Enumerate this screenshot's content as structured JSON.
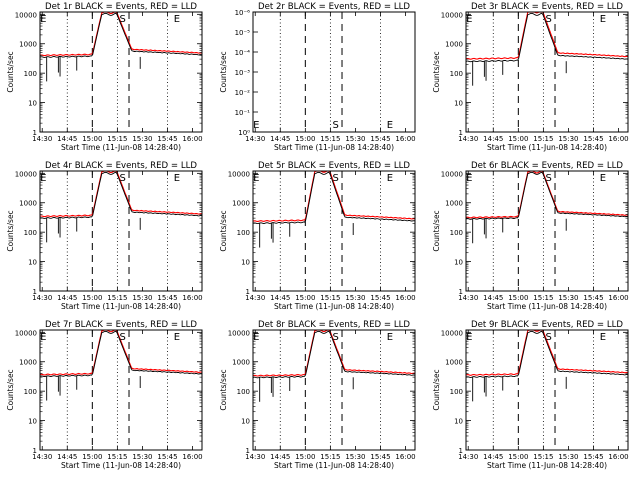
{
  "colors": {
    "events": "#000000",
    "lld": "#ff0000",
    "axis": "#000000"
  },
  "common": {
    "xlabel": "Start Time (11-Jun-08 14:28:40)",
    "ylabel": "Counts/sec",
    "xticks": [
      "14:30",
      "14:45",
      "15:00",
      "15:15",
      "15:30",
      "15:45",
      "16:00"
    ],
    "xtick_minutes": [
      1.33,
      16.33,
      31.33,
      46.33,
      61.33,
      76.33,
      91.33
    ],
    "xlim_minutes": [
      0,
      97
    ],
    "dotted_grid_minutes": [
      16.33,
      46.33,
      76.33
    ],
    "dashed_markers_minutes": [
      31.33,
      53.3
    ],
    "marker_letters": [
      {
        "t": 2.0,
        "text": "E"
      },
      {
        "t": 49.5,
        "text": "S"
      },
      {
        "t": 82.0,
        "text": "E"
      }
    ],
    "yticks": [
      "1",
      "10",
      "100",
      "1000",
      "10000"
    ],
    "ytick_values": [
      1,
      10,
      100,
      1000,
      10000
    ],
    "ylim": [
      1,
      12000
    ]
  },
  "panels": [
    {
      "title": "Det 1r BLACK = Events, RED = LLD",
      "base": 350,
      "lld_ratio": 1.15
    },
    {
      "title": "Det 2r BLACK = Events, RED = LLD",
      "empty": true,
      "yticks": [
        "10⁻⁶",
        "10⁻⁵",
        "10⁻⁴",
        "10⁻³",
        "10⁻²",
        "10⁻¹",
        "10⁰"
      ],
      "ytick_exponents": [
        -6,
        -5,
        -4,
        -3,
        -2,
        -1,
        0
      ],
      "ylim_exponents": [
        0,
        -6
      ]
    },
    {
      "title": "Det 3r BLACK = Events, RED = LLD",
      "base": 250,
      "lld_ratio": 1.22
    },
    {
      "title": "Det 4r BLACK = Events, RED = LLD",
      "base": 300,
      "lld_ratio": 1.15
    },
    {
      "title": "Det 5r BLACK = Events, RED = LLD",
      "base": 200,
      "lld_ratio": 1.18
    },
    {
      "title": "Det 6r BLACK = Events, RED = LLD",
      "base": 280,
      "lld_ratio": 1.12
    },
    {
      "title": "Det 7r BLACK = Events, RED = LLD",
      "base": 320,
      "lld_ratio": 1.14
    },
    {
      "title": "Det 8r BLACK = Events, RED = LLD",
      "base": 290,
      "lld_ratio": 1.15
    },
    {
      "title": "Det 9r BLACK = Events, RED = LLD",
      "base": 300,
      "lld_ratio": 1.18
    }
  ],
  "chart_data": [
    {
      "type": "line",
      "title": "Det 1r BLACK = Events, RED = LLD",
      "xlabel": "Start Time (11-Jun-08 14:28:40)",
      "ylabel": "Counts/sec",
      "log_y": true,
      "ylim": [
        1,
        12000
      ],
      "series": [
        {
          "name": "Events",
          "x": [
            0,
            31,
            33,
            39,
            41,
            54,
            97
          ],
          "y": [
            330,
            370,
            800,
            10000,
            10000,
            600,
            400
          ]
        },
        {
          "name": "LLD",
          "x": [
            0,
            31,
            33,
            39,
            41,
            54,
            97
          ],
          "y": [
            380,
            420,
            900,
            10000,
            10000,
            690,
            460
          ]
        }
      ]
    },
    {
      "type": "line",
      "title": "Det 2r BLACK = Events, RED = LLD",
      "xlabel": "Start Time (11-Jun-08 14:28:40)",
      "ylabel": "Counts/sec",
      "log_y": true,
      "ylim": [
        1e-06,
        1
      ],
      "series": []
    },
    {
      "type": "line",
      "title": "Det 3r BLACK = Events, RED = LLD",
      "xlabel": "Start Time (11-Jun-08 14:28:40)",
      "ylabel": "Counts/sec",
      "log_y": true,
      "ylim": [
        1,
        12000
      ],
      "series": [
        {
          "name": "Events",
          "x": [
            0,
            31,
            33,
            39,
            41,
            54,
            97
          ],
          "y": [
            240,
            260,
            700,
            10000,
            10000,
            380,
            300
          ]
        },
        {
          "name": "LLD",
          "x": [
            0,
            31,
            33,
            39,
            41,
            54,
            97
          ],
          "y": [
            290,
            320,
            800,
            10000,
            10000,
            460,
            370
          ]
        }
      ]
    },
    {
      "type": "line",
      "title": "Det 4r BLACK = Events, RED = LLD",
      "xlabel": "Start Time (11-Jun-08 14:28:40)",
      "ylabel": "Counts/sec",
      "log_y": true,
      "ylim": [
        1,
        12000
      ],
      "series": [
        {
          "name": "Events",
          "x": [
            0,
            31,
            33,
            39,
            41,
            54,
            97
          ],
          "y": [
            280,
            320,
            800,
            10000,
            10000,
            480,
            330
          ]
        },
        {
          "name": "LLD",
          "x": [
            0,
            31,
            33,
            39,
            41,
            54,
            97
          ],
          "y": [
            320,
            370,
            900,
            10000,
            10000,
            550,
            380
          ]
        }
      ]
    },
    {
      "type": "line",
      "title": "Det 5r BLACK = Events, RED = LLD",
      "xlabel": "Start Time (11-Jun-08 14:28:40)",
      "ylabel": "Counts/sec",
      "log_y": true,
      "ylim": [
        1,
        12000
      ],
      "series": [
        {
          "name": "Events",
          "x": [
            0,
            31,
            33,
            39,
            41,
            54,
            97
          ],
          "y": [
            180,
            220,
            600,
            10000,
            10000,
            330,
            220
          ]
        },
        {
          "name": "LLD",
          "x": [
            0,
            31,
            33,
            39,
            41,
            54,
            97
          ],
          "y": [
            210,
            260,
            700,
            10000,
            10000,
            390,
            260
          ]
        }
      ]
    },
    {
      "type": "line",
      "title": "Det 6r BLACK = Events, RED = LLD",
      "xlabel": "Start Time (11-Jun-08 14:28:40)",
      "ylabel": "Counts/sec",
      "log_y": true,
      "ylim": [
        1,
        12000
      ],
      "series": [
        {
          "name": "Events",
          "x": [
            0,
            31,
            33,
            39,
            41,
            54,
            97
          ],
          "y": [
            260,
            290,
            750,
            10000,
            10000,
            520,
            380
          ]
        },
        {
          "name": "LLD",
          "x": [
            0,
            31,
            33,
            39,
            41,
            54,
            97
          ],
          "y": [
            290,
            330,
            850,
            10000,
            10000,
            580,
            420
          ]
        }
      ]
    },
    {
      "type": "line",
      "title": "Det 7r BLACK = Events, RED = LLD",
      "xlabel": "Start Time (11-Jun-08 14:28:40)",
      "ylabel": "Counts/sec",
      "log_y": true,
      "ylim": [
        1,
        12000
      ],
      "series": [
        {
          "name": "Events",
          "x": [
            0,
            31,
            33,
            39,
            41,
            54,
            97
          ],
          "y": [
            300,
            340,
            800,
            10000,
            10000,
            530,
            380
          ]
        },
        {
          "name": "LLD",
          "x": [
            0,
            31,
            33,
            39,
            41,
            54,
            97
          ],
          "y": [
            340,
            390,
            900,
            10000,
            10000,
            600,
            430
          ]
        }
      ]
    },
    {
      "type": "line",
      "title": "Det 8r BLACK = Events, RED = LLD",
      "xlabel": "Start Time (11-Jun-08 14:28:40)",
      "ylabel": "Counts/sec",
      "log_y": true,
      "ylim": [
        1,
        12000
      ],
      "series": [
        {
          "name": "Events",
          "x": [
            0,
            31,
            33,
            39,
            41,
            54,
            97
          ],
          "y": [
            270,
            310,
            780,
            10000,
            10000,
            500,
            360
          ]
        },
        {
          "name": "LLD",
          "x": [
            0,
            31,
            33,
            39,
            41,
            54,
            97
          ],
          "y": [
            310,
            360,
            880,
            10000,
            10000,
            575,
            410
          ]
        }
      ]
    },
    {
      "type": "line",
      "title": "Det 9r BLACK = Events, RED = LLD",
      "xlabel": "Start Time (11-Jun-08 14:28:40)",
      "ylabel": "Counts/sec",
      "log_y": true,
      "ylim": [
        1,
        12000
      ],
      "series": [
        {
          "name": "Events",
          "x": [
            0,
            31,
            33,
            39,
            41,
            54,
            97
          ],
          "y": [
            280,
            320,
            780,
            10000,
            10000,
            520,
            370
          ]
        },
        {
          "name": "LLD",
          "x": [
            0,
            31,
            33,
            39,
            41,
            54,
            97
          ],
          "y": [
            330,
            380,
            900,
            10000,
            10000,
            610,
            430
          ]
        }
      ]
    }
  ]
}
